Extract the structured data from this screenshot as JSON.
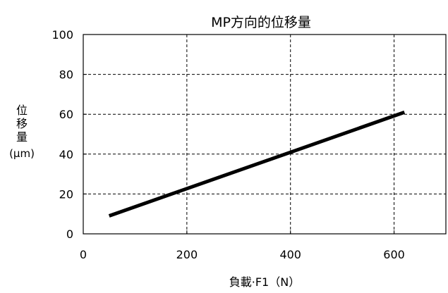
{
  "chart_data": {
    "type": "line",
    "title": "MP方向的位移量",
    "xlabel": "負載·F1（N）",
    "ylabel_chars": [
      "位",
      "移",
      "量"
    ],
    "ylabel_unit": "(μm)",
    "xlim": [
      0,
      700
    ],
    "ylim": [
      0,
      100
    ],
    "xticks": [
      0,
      200,
      400,
      600
    ],
    "yticks": [
      0,
      20,
      40,
      60,
      80,
      100
    ],
    "grid": true,
    "series": [
      {
        "x": [
          50,
          620
        ],
        "y": [
          9,
          61
        ],
        "color": "#000000"
      }
    ]
  }
}
